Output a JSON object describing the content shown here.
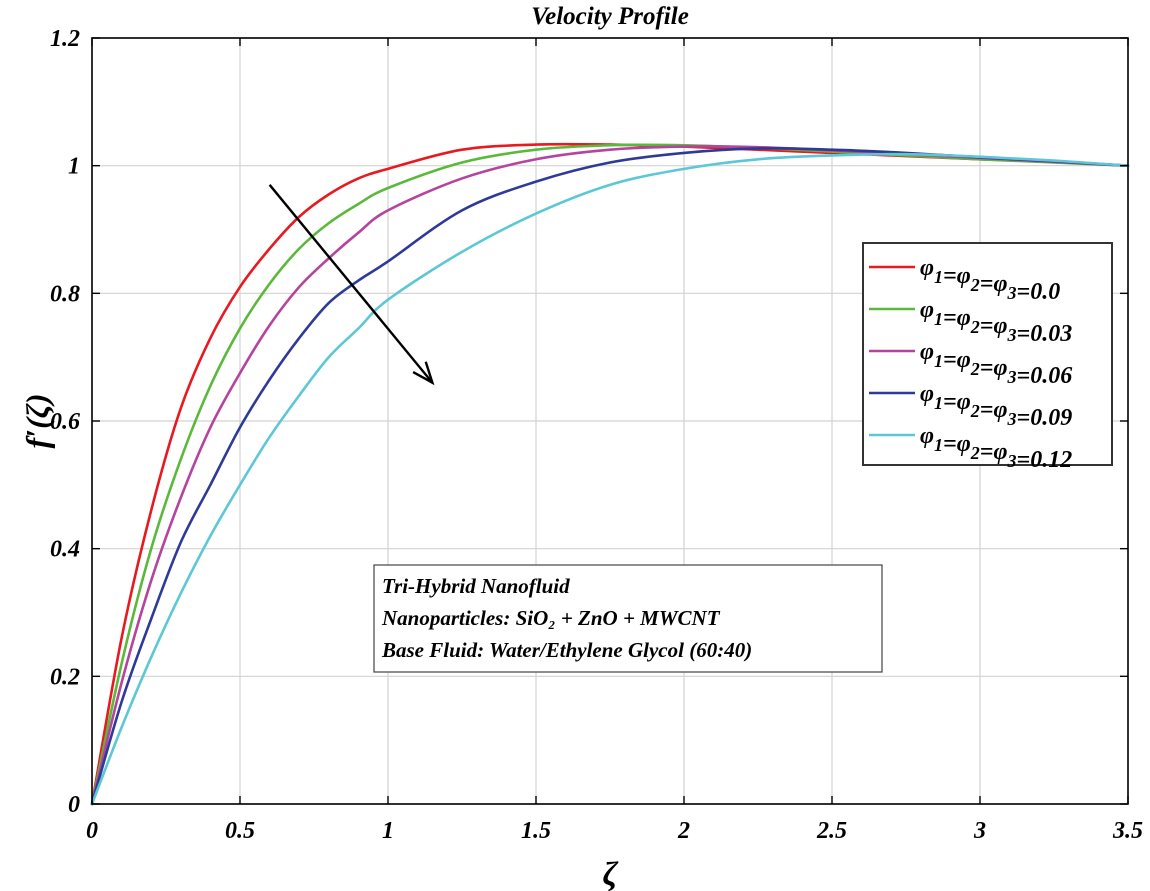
{
  "chart_data": {
    "type": "line",
    "title": "Velocity Profile",
    "xlabel": "ζ",
    "ylabel": "f′(ζ)",
    "xlim": [
      0,
      3.5
    ],
    "ylim": [
      0,
      1.2
    ],
    "x_ticks": [
      "0",
      "0.5",
      "1",
      "1.5",
      "2",
      "2.5",
      "3",
      "3.5"
    ],
    "y_ticks": [
      "0",
      "0.2",
      "0.4",
      "0.6",
      "0.8",
      "1",
      "1.2"
    ],
    "grid": true,
    "legend_position": "right",
    "x": [
      0,
      0.1,
      0.2,
      0.3,
      0.4,
      0.5,
      0.6,
      0.7,
      0.8,
      0.9,
      1.0,
      1.25,
      1.5,
      1.75,
      2.0,
      2.25,
      2.5,
      2.75,
      3.0,
      3.25,
      3.5
    ],
    "series": [
      {
        "name": "φ1=φ2=φ3=0.0",
        "color": "#e8191f",
        "values": [
          0,
          0.26,
          0.46,
          0.62,
          0.73,
          0.81,
          0.87,
          0.92,
          0.955,
          0.98,
          0.995,
          1.025,
          1.033,
          1.033,
          1.03,
          1.025,
          1.02,
          1.015,
          1.01,
          1.006,
          1.0
        ]
      },
      {
        "name": "φ1=φ2=φ3=0.03",
        "color": "#5ab93b",
        "values": [
          0,
          0.22,
          0.4,
          0.54,
          0.655,
          0.745,
          0.815,
          0.87,
          0.91,
          0.94,
          0.965,
          1.005,
          1.025,
          1.032,
          1.032,
          1.028,
          1.022,
          1.016,
          1.01,
          1.005,
          1.0
        ]
      },
      {
        "name": "φ1=φ2=φ3=0.06",
        "color": "#b5449e",
        "values": [
          0,
          0.19,
          0.35,
          0.48,
          0.59,
          0.675,
          0.75,
          0.81,
          0.855,
          0.895,
          0.93,
          0.98,
          1.01,
          1.025,
          1.03,
          1.029,
          1.024,
          1.018,
          1.012,
          1.006,
          1.0
        ]
      },
      {
        "name": "φ1=φ2=φ3=0.09",
        "color": "#2e3a97",
        "values": [
          0,
          0.16,
          0.29,
          0.41,
          0.5,
          0.59,
          0.665,
          0.73,
          0.785,
          0.82,
          0.85,
          0.93,
          0.975,
          1.005,
          1.02,
          1.027,
          1.025,
          1.02,
          1.013,
          1.007,
          1.0
        ]
      },
      {
        "name": "φ1=φ2=φ3=0.12",
        "color": "#5cc8d6",
        "values": [
          0,
          0.12,
          0.23,
          0.33,
          0.42,
          0.5,
          0.575,
          0.64,
          0.7,
          0.745,
          0.79,
          0.865,
          0.925,
          0.97,
          0.995,
          1.01,
          1.016,
          1.018,
          1.014,
          1.008,
          1.0
        ]
      }
    ],
    "annotation": {
      "lines": [
        "Tri-Hybrid Nanofluid",
        "Nanoparticles:  SiO₂ + ZnO + MWCNT",
        "Base Fluid: Water/Ethylene Glycol (60:40)"
      ]
    },
    "arrow": {
      "from": [
        0.6,
        0.97
      ],
      "to": [
        1.15,
        0.66
      ]
    }
  }
}
